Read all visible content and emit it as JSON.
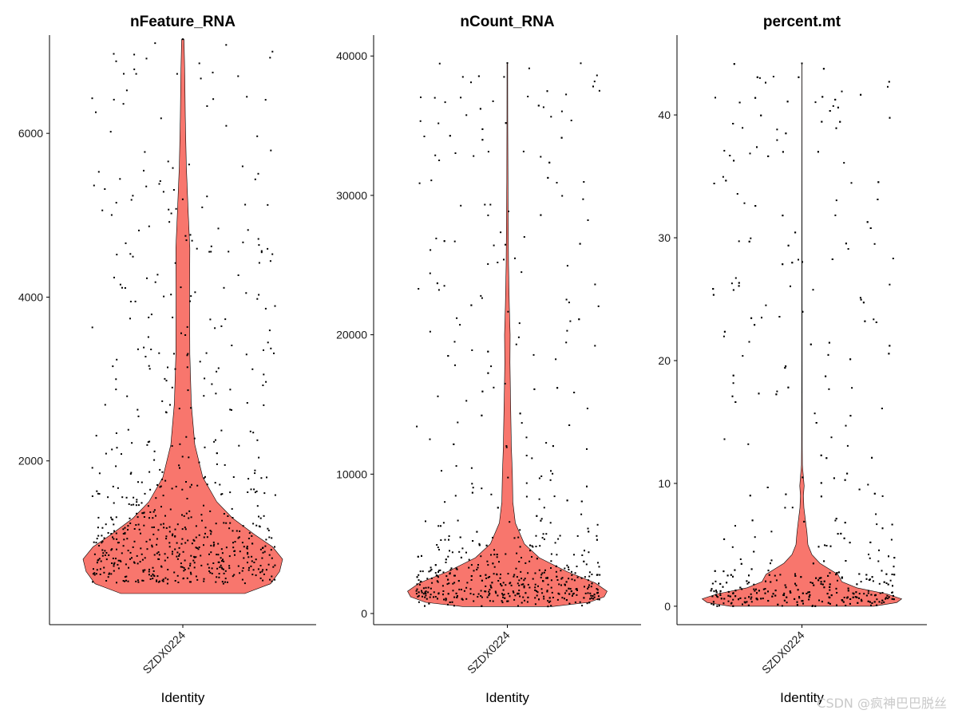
{
  "chart_data": [
    {
      "type": "violin",
      "title": "nFeature_RNA",
      "xlabel": "Identity",
      "ylabel": "",
      "categories": [
        "SZDX0224"
      ],
      "fill_color": "#F8766D",
      "ylim": [
        0,
        7200
      ],
      "yticks": [
        2000,
        4000,
        6000
      ],
      "min": 380,
      "max": 7150,
      "density": [
        [
          380,
          0.62
        ],
        [
          500,
          0.88
        ],
        [
          650,
          0.97
        ],
        [
          800,
          1.0
        ],
        [
          950,
          0.9
        ],
        [
          1100,
          0.72
        ],
        [
          1300,
          0.5
        ],
        [
          1500,
          0.34
        ],
        [
          1800,
          0.2
        ],
        [
          2200,
          0.12
        ],
        [
          2700,
          0.085
        ],
        [
          3300,
          0.07
        ],
        [
          4000,
          0.068
        ],
        [
          4600,
          0.07
        ],
        [
          5000,
          0.055
        ],
        [
          5600,
          0.035
        ],
        [
          6200,
          0.025
        ],
        [
          6700,
          0.02
        ],
        [
          7150,
          0.012
        ]
      ],
      "jitter_range": [
        500,
        7150
      ]
    },
    {
      "type": "violin",
      "title": "nCount_RNA",
      "xlabel": "Identity",
      "ylabel": "",
      "categories": [
        "SZDX0224"
      ],
      "fill_color": "#F8766D",
      "ylim": [
        -800,
        41500
      ],
      "yticks": [
        0,
        10000,
        20000,
        30000,
        40000
      ],
      "min": 500,
      "max": 39500,
      "density": [
        [
          500,
          0.45
        ],
        [
          800,
          0.82
        ],
        [
          1200,
          0.97
        ],
        [
          1600,
          1.0
        ],
        [
          2200,
          0.88
        ],
        [
          3000,
          0.6
        ],
        [
          4000,
          0.32
        ],
        [
          5000,
          0.17
        ],
        [
          6500,
          0.08
        ],
        [
          8000,
          0.055
        ],
        [
          10000,
          0.05
        ],
        [
          12000,
          0.04
        ],
        [
          14000,
          0.035
        ],
        [
          16000,
          0.03
        ],
        [
          18000,
          0.026
        ],
        [
          20000,
          0.028
        ],
        [
          22000,
          0.02
        ],
        [
          25000,
          0.012
        ],
        [
          28000,
          0.009
        ],
        [
          31000,
          0.006
        ],
        [
          35000,
          0.004
        ],
        [
          39500,
          0.003
        ]
      ],
      "jitter_range": [
        500,
        39500
      ]
    },
    {
      "type": "violin",
      "title": "percent.mt",
      "xlabel": "Identity",
      "ylabel": "",
      "categories": [
        "SZDX0224"
      ],
      "fill_color": "#F8766D",
      "ylim": [
        -1.5,
        46.5
      ],
      "yticks": [
        0,
        10,
        20,
        30,
        40
      ],
      "min": 0,
      "max": 44.2,
      "density": [
        [
          0,
          0.72
        ],
        [
          0.3,
          0.95
        ],
        [
          0.6,
          1.0
        ],
        [
          1.0,
          0.85
        ],
        [
          1.5,
          0.55
        ],
        [
          2.0,
          0.4
        ],
        [
          2.6,
          0.36
        ],
        [
          3.0,
          0.28
        ],
        [
          3.5,
          0.18
        ],
        [
          4.2,
          0.1
        ],
        [
          5.0,
          0.06
        ],
        [
          6.0,
          0.05
        ],
        [
          7.0,
          0.035
        ],
        [
          8.0,
          0.02
        ],
        [
          9.0,
          0.015
        ],
        [
          9.8,
          0.022
        ],
        [
          10.5,
          0.015
        ],
        [
          11.5,
          0.005
        ],
        [
          13.0,
          0.003
        ],
        [
          20.0,
          0.002
        ],
        [
          30.0,
          0.0015
        ],
        [
          44.2,
          0.001
        ]
      ],
      "jitter_range": [
        0,
        44.2
      ]
    }
  ],
  "watermark": "CSDN @疯神巴巴脱丝"
}
